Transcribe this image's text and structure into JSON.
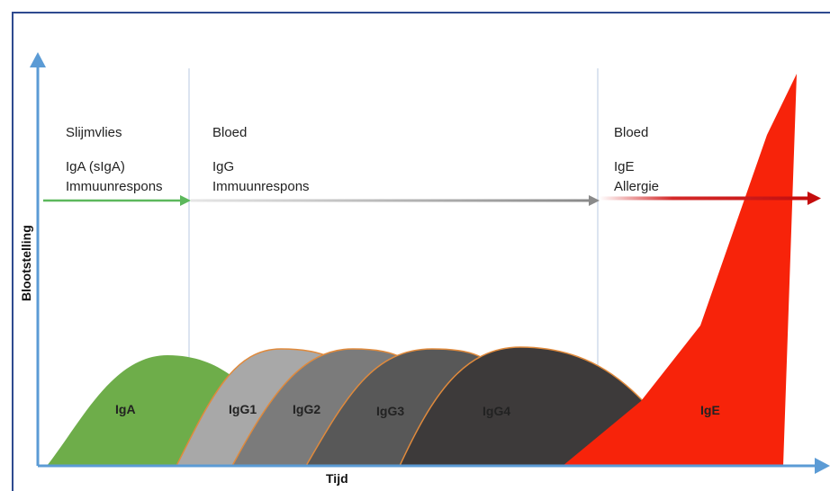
{
  "axes": {
    "x_label": "Tijd",
    "y_label": "Blootstelling"
  },
  "zones": [
    {
      "line1": "Slijmvlies",
      "line2": "IgA (sIgA)",
      "line3": "Immuunrespons"
    },
    {
      "line1": "Bloed",
      "line2": "IgG",
      "line3": "Immuunrespons"
    },
    {
      "line1": "Bloed",
      "line2": "IgE",
      "line3": "Allergie"
    }
  ],
  "curves": [
    {
      "label": "IgA",
      "color": "#6ead4a"
    },
    {
      "label": "IgG1",
      "color": "#a8a8a8"
    },
    {
      "label": "IgG2",
      "color": "#7b7b7b"
    },
    {
      "label": "IgG3",
      "color": "#585858"
    },
    {
      "label": "IgG4",
      "color": "#3d3a3a"
    },
    {
      "label": "IgE",
      "color": "#f7230a"
    }
  ],
  "colors": {
    "axis": "#5b9bd5",
    "frame": "#2e4a8f",
    "arrow_green": "#5cb85c",
    "arrow_grey": "#888888",
    "arrow_red": "#cc1010",
    "curve_outline": "#e08a3c"
  }
}
